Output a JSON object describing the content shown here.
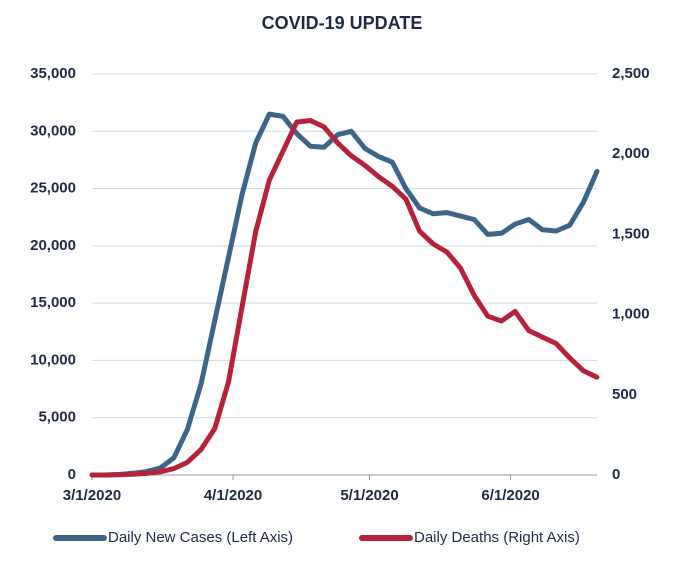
{
  "chart_data": {
    "type": "line",
    "title": "COVID-19 UPDATE",
    "x": [
      "3/1/2020",
      "3/4/2020",
      "3/7/2020",
      "3/10/2020",
      "3/13/2020",
      "3/16/2020",
      "3/19/2020",
      "3/22/2020",
      "3/25/2020",
      "3/28/2020",
      "3/31/2020",
      "4/3/2020",
      "4/6/2020",
      "4/9/2020",
      "4/12/2020",
      "4/15/2020",
      "4/18/2020",
      "4/21/2020",
      "4/24/2020",
      "4/27/2020",
      "4/30/2020",
      "5/3/2020",
      "5/6/2020",
      "5/9/2020",
      "5/12/2020",
      "5/15/2020",
      "5/18/2020",
      "5/21/2020",
      "5/24/2020",
      "5/27/2020",
      "5/30/2020",
      "6/2/2020",
      "6/5/2020",
      "6/8/2020",
      "6/11/2020",
      "6/14/2020",
      "6/17/2020",
      "6/20/2020"
    ],
    "series": [
      {
        "name": "Daily New Cases (Left Axis)",
        "color": "#3d6589",
        "axis": "y",
        "values": [
          0,
          0,
          50,
          150,
          300,
          600,
          1500,
          4000,
          8000,
          13500,
          19000,
          24500,
          29000,
          31500,
          31300,
          29800,
          28700,
          28600,
          29700,
          30000,
          28500,
          27800,
          27300,
          25000,
          23300,
          22800,
          22900,
          22600,
          22300,
          21000,
          21100,
          21900,
          22300,
          21400,
          21300,
          21800,
          23800,
          26500
        ]
      },
      {
        "name": "Daily Deaths (Right Axis)",
        "color": "#b5223b",
        "axis": "y2",
        "values": [
          0,
          0,
          2,
          5,
          10,
          20,
          40,
          80,
          160,
          290,
          580,
          1050,
          1520,
          1840,
          2020,
          2200,
          2210,
          2170,
          2070,
          1990,
          1930,
          1860,
          1800,
          1720,
          1520,
          1440,
          1390,
          1290,
          1120,
          990,
          960,
          1020,
          900,
          860,
          820,
          730,
          650,
          610
        ]
      }
    ],
    "xlim": [
      "3/1/2020",
      "6/20/2020"
    ],
    "xticks": [
      "3/1/2020",
      "4/1/2020",
      "5/1/2020",
      "6/1/2020"
    ],
    "ylim": [
      0,
      35000
    ],
    "yticks": [
      0,
      {
        "value": 5000,
        "label": "5,000"
      },
      {
        "value": 10000,
        "label": "10,000"
      },
      {
        "value": 15000,
        "label": "15,000"
      },
      {
        "value": 20000,
        "label": "20,000"
      },
      {
        "value": 25000,
        "label": "25,000"
      },
      {
        "value": 30000,
        "label": "30,000"
      },
      {
        "value": 35000,
        "label": "35,000"
      }
    ],
    "y2lim": [
      0,
      2500
    ],
    "y2ticks": [
      0,
      500,
      {
        "value": 1000,
        "label": "1,000"
      },
      {
        "value": 1500,
        "label": "1,500"
      },
      {
        "value": 2000,
        "label": "2,000"
      },
      {
        "value": 2500,
        "label": "2,500"
      }
    ],
    "grid": true,
    "legend": "bottom"
  }
}
